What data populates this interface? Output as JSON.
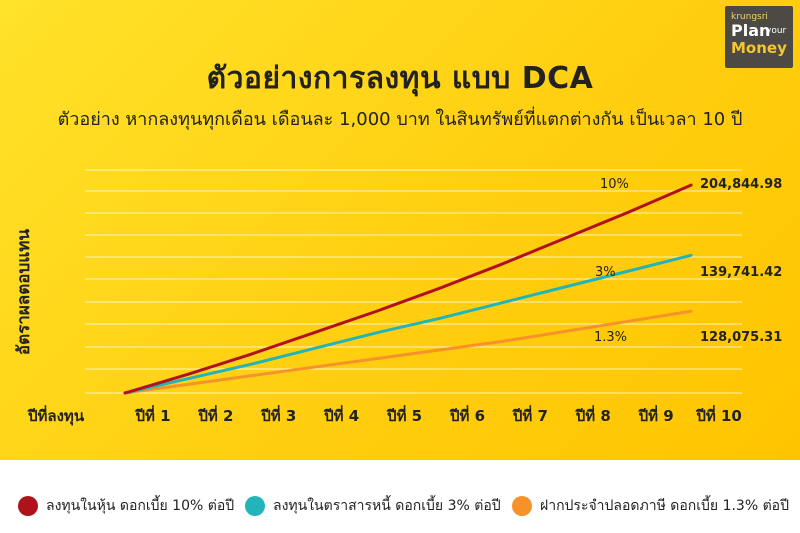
{
  "brand": {
    "line1": "krungsri",
    "line2": "Plan",
    "line3": "your",
    "line4": "Money"
  },
  "chart_data": {
    "type": "line",
    "title": "ตัวอย่างการลงทุน แบบ DCA",
    "subtitle": "ตัวอย่าง หากลงทุนทุกเดือน เดือนละ 1,000 บาท ในสินทรัพย์ที่แตกต่างกัน เป็นเวลา 10 ปี",
    "ylabel": "อัตราผลตอบแทน",
    "xlabel": "ปีที่ลงทุน",
    "categories": [
      "ปีที่ 1",
      "ปีที่ 2",
      "ปีที่ 3",
      "ปีที่ 4",
      "ปีที่ 5",
      "ปีที่ 6",
      "ปีที่ 7",
      "ปีที่ 8",
      "ปีที่ 9",
      "ปีที่ 10"
    ],
    "grid": true,
    "series": [
      {
        "name": "ลงทุนในหุ้น ดอกเบี้ย 10% ต่อปี",
        "rate_label": "10%",
        "end_label": "204,844.98",
        "color": "#b0121b",
        "values": [
          0,
          13,
          27,
          42,
          57,
          73,
          90,
          108,
          126,
          145
        ]
      },
      {
        "name": "ลงทุนในตราสารหนี้ ดอกเบี้ย 3% ต่อปี",
        "rate_label": "3%",
        "end_label": "139,741.42",
        "color": "#22b4b8",
        "values": [
          0,
          10,
          20,
          31,
          42,
          52,
          63,
          74,
          85,
          96
        ]
      },
      {
        "name": "ฝากประจำปลอดภาษี ดอกเบี้ย 1.3% ต่อปี",
        "rate_label": "1.3%",
        "end_label": "128,075.31",
        "color": "#f7922a",
        "values": [
          0,
          6,
          12,
          18,
          24,
          30,
          36,
          43,
          50,
          57
        ]
      }
    ]
  }
}
